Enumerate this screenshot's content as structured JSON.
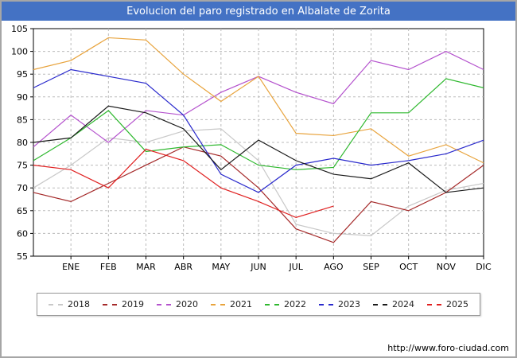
{
  "title": "Evolucion del paro registrado en Albalate de Zorita",
  "colors": {
    "title_bar": "#4472C4"
  },
  "footer": {
    "url": "http://www.foro-ciudad.com"
  },
  "chart_data": {
    "type": "line",
    "categories": [
      "ENE",
      "FEB",
      "MAR",
      "ABR",
      "MAY",
      "JUN",
      "JUL",
      "AGO",
      "SEP",
      "OCT",
      "NOV",
      "DIC"
    ],
    "ylabel": "",
    "xlabel": "",
    "ylim": [
      55,
      105
    ],
    "ytick_step": 5,
    "grid": true,
    "legend_position": "bottom",
    "series": [
      {
        "name": "2018",
        "color": "#C8C8C8",
        "start": 70,
        "values": [
          75,
          81,
          80,
          82.5,
          83,
          76,
          62,
          60,
          59.5,
          66,
          69.5,
          71
        ]
      },
      {
        "name": "2019",
        "color": "#A52A2A",
        "start": 69,
        "values": [
          67,
          71,
          75,
          79,
          77,
          70,
          61,
          58,
          67,
          65,
          69,
          75
        ]
      },
      {
        "name": "2020",
        "color": "#B452CD",
        "start": 79,
        "values": [
          86,
          80,
          87,
          86,
          91,
          94.5,
          91,
          88.5,
          98,
          96,
          100,
          96
        ]
      },
      {
        "name": "2021",
        "color": "#E8A33C",
        "start": 96,
        "values": [
          98,
          103,
          102.5,
          95,
          89,
          94.5,
          82,
          81.5,
          83,
          77,
          79.5,
          75.5
        ]
      },
      {
        "name": "2022",
        "color": "#2EB82E",
        "start": 76,
        "values": [
          81,
          87,
          78,
          79,
          79.5,
          75,
          74,
          74.5,
          86.5,
          86.5,
          94,
          92
        ]
      },
      {
        "name": "2023",
        "color": "#2929CC",
        "start": 92,
        "values": [
          96,
          94.5,
          93,
          86,
          73,
          69,
          75,
          76.5,
          75,
          76,
          77.5,
          80.5
        ]
      },
      {
        "name": "2024",
        "color": "#1A1A1A",
        "start": 80,
        "values": [
          81,
          88,
          86.5,
          83,
          74,
          80.5,
          76,
          73,
          72,
          75.5,
          69,
          70
        ]
      },
      {
        "name": "2025",
        "color": "#E02020",
        "start": 75,
        "values": [
          74,
          70,
          78.5,
          76,
          70,
          67,
          63.5,
          66,
          null,
          null,
          null,
          null
        ]
      }
    ]
  }
}
